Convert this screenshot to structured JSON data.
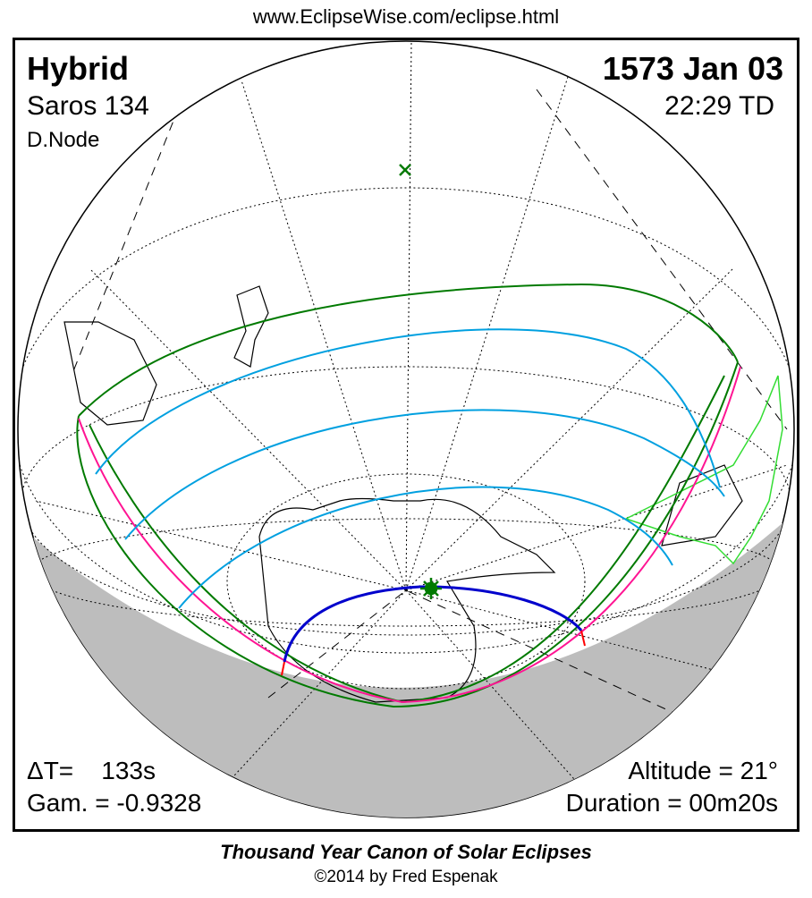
{
  "header_url": "www.EclipseWise.com/eclipse.html",
  "eclipse": {
    "type": "Hybrid",
    "saros": "Saros 134",
    "node": "D.Node",
    "date": "1573 Jan 03",
    "time": "22:29 TD",
    "delta_t": "ΔT=    133s",
    "gamma": "Gam. = -0.9328",
    "altitude": "Altitude = 21°",
    "duration": "Duration = 00m20s"
  },
  "footer": {
    "title": "Thousand Year Canon of Solar Eclipses",
    "copyright": "©2014 by Fred Espenak"
  },
  "colors": {
    "penumbral_limits": "#007a00",
    "magenta_limits": "#ff1493",
    "cyan_curves": "#00a0e0",
    "central_path": "#0000cc",
    "path_ends": "#ff0000",
    "night": "#bdbdbd",
    "greatest_eclipse_marker": "#007a00"
  },
  "icons": {
    "greatest_eclipse": "star-burst-icon",
    "subsolar_point": "x-mark-icon"
  }
}
